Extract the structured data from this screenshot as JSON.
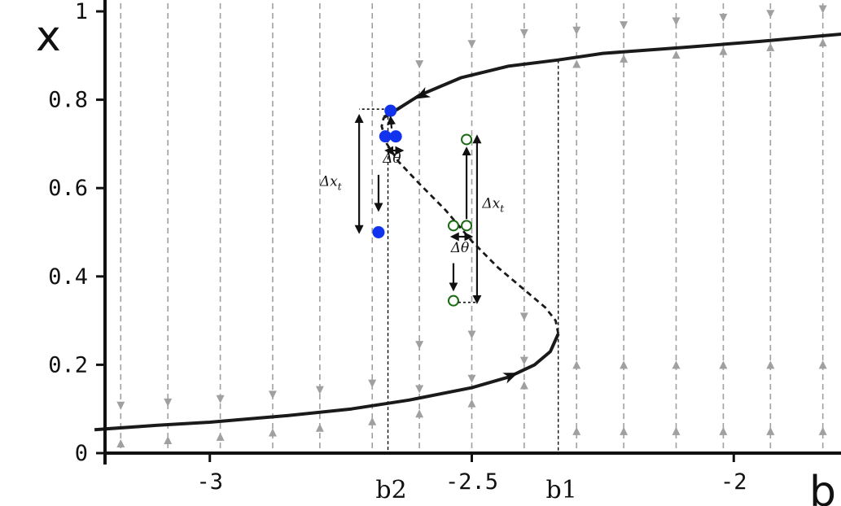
{
  "chart_data": {
    "type": "line",
    "title": "",
    "xlabel": "b",
    "ylabel": "x",
    "xlim": [
      -3.2,
      -1.8
    ],
    "ylim": [
      0,
      1
    ],
    "x_ticks": [
      -3,
      -2.5,
      -2
    ],
    "x_tick_labels": [
      "-3",
      "-2.5",
      "-2"
    ],
    "y_ticks": [
      0,
      0.2,
      0.4,
      0.6,
      0.8,
      1
    ],
    "y_tick_labels": [
      "0",
      "0.2",
      "0.4",
      "0.6",
      "0.8",
      "1"
    ],
    "grid": false,
    "series": [
      {
        "style": "solid",
        "color": "#1a1a1a",
        "points": [
          [
            -3.22,
            0.053
          ],
          [
            -3.1,
            0.063
          ],
          [
            -3.0,
            0.07
          ],
          [
            -2.85,
            0.085
          ],
          [
            -2.73,
            0.1
          ],
          [
            -2.62,
            0.12
          ],
          [
            -2.5,
            0.148
          ],
          [
            -2.43,
            0.172
          ],
          [
            -2.38,
            0.2
          ],
          [
            -2.35,
            0.23
          ],
          [
            -2.335,
            0.27
          ]
        ]
      },
      {
        "style": "dashed",
        "color": "#1a1a1a",
        "points": [
          [
            -2.335,
            0.27
          ],
          [
            -2.34,
            0.3
          ],
          [
            -2.36,
            0.33
          ],
          [
            -2.4,
            0.37
          ],
          [
            -2.45,
            0.42
          ],
          [
            -2.5,
            0.48
          ],
          [
            -2.55,
            0.55
          ],
          [
            -2.6,
            0.61
          ],
          [
            -2.64,
            0.66
          ],
          [
            -2.662,
            0.7
          ],
          [
            -2.672,
            0.74
          ],
          [
            -2.668,
            0.76
          ]
        ]
      },
      {
        "style": "solid",
        "color": "#1a1a1a",
        "points": [
          [
            -2.668,
            0.76
          ],
          [
            -2.64,
            0.78
          ],
          [
            -2.6,
            0.81
          ],
          [
            -2.52,
            0.85
          ],
          [
            -2.43,
            0.876
          ],
          [
            -2.335,
            0.89
          ],
          [
            -2.25,
            0.905
          ],
          [
            -2.1,
            0.918
          ],
          [
            -1.95,
            0.932
          ],
          [
            -1.78,
            0.95
          ]
        ]
      }
    ],
    "critical_points": [
      {
        "label": "b2",
        "x": -2.66,
        "y": 0.775
      },
      {
        "label": "b1",
        "x": -2.335,
        "y": 0.89
      }
    ],
    "flow_field": {
      "color": "#a0a0a0",
      "x_positions": [
        -3.17,
        -3.08,
        -2.98,
        -2.88,
        -2.79,
        -2.69,
        -2.6,
        -2.5,
        -2.4,
        -2.3,
        -2.21,
        -2.11,
        -2.02,
        -1.93,
        -1.83
      ]
    },
    "markers": {
      "blue_filled": [
        {
          "x": -2.655,
          "y": 0.775
        },
        {
          "x": -2.665,
          "y": 0.717
        },
        {
          "x": -2.645,
          "y": 0.717
        },
        {
          "x": -2.678,
          "y": 0.5
        }
      ],
      "green_open": [
        {
          "x": -2.51,
          "y": 0.71
        },
        {
          "x": -2.535,
          "y": 0.515
        },
        {
          "x": -2.51,
          "y": 0.515
        },
        {
          "x": -2.535,
          "y": 0.345
        }
      ],
      "blue_color": "#1133ee",
      "green_color": "#1a6b12"
    },
    "annotations": [
      {
        "text": "Δx",
        "subscript": "t",
        "group": "blue"
      },
      {
        "text": "Δθ",
        "group": "blue"
      },
      {
        "text": "Δx",
        "subscript": "t",
        "group": "green"
      },
      {
        "text": "Δθ",
        "group": "green"
      }
    ]
  }
}
